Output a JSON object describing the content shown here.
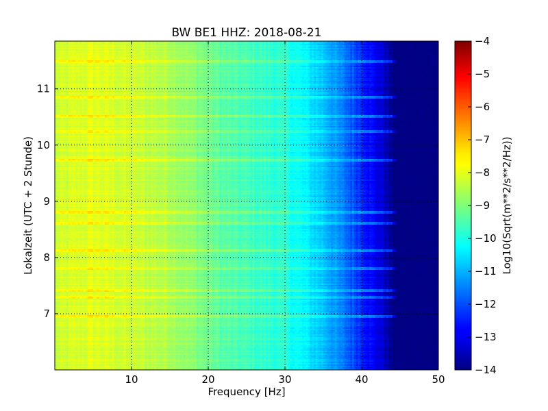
{
  "chart_data": {
    "type": "heatmap",
    "title": "BW BE1 HHZ: 2018-08-21",
    "xlabel": "Frequency [Hz]",
    "ylabel": "Lokalzeit (UTC + 2 Stunde)",
    "xlim": [
      0,
      50
    ],
    "ylim": [
      11.85,
      6.0
    ],
    "x_ticks": [
      10,
      20,
      30,
      40,
      50
    ],
    "y_ticks": [
      7,
      8,
      9,
      10,
      11
    ],
    "grid": true,
    "colorbar": {
      "label": "Log10(Sqrt(m**2/s**2/Hz))",
      "range": [
        -14,
        -4
      ],
      "ticks": [
        -4,
        -5,
        -6,
        -7,
        -8,
        -9,
        -10,
        -11,
        -12,
        -13,
        -14
      ],
      "colormap": "jet"
    },
    "spectral_profile": [
      {
        "freq_hz": 0,
        "value": -8.3
      },
      {
        "freq_hz": 5,
        "value": -8.0
      },
      {
        "freq_hz": 15,
        "value": -8.5
      },
      {
        "freq_hz": 22,
        "value": -9.4
      },
      {
        "freq_hz": 30,
        "value": -9.9
      },
      {
        "freq_hz": 35,
        "value": -10.8
      },
      {
        "freq_hz": 40,
        "value": -12.3
      },
      {
        "freq_hz": 43,
        "value": -13.3
      },
      {
        "freq_hz": 44,
        "value": -14.0
      }
    ],
    "events_hours": [
      6.96,
      7.3,
      7.42,
      7.8,
      8.12,
      8.6,
      8.8,
      9.72,
      10.24,
      10.5,
      10.86,
      11.48
    ]
  }
}
